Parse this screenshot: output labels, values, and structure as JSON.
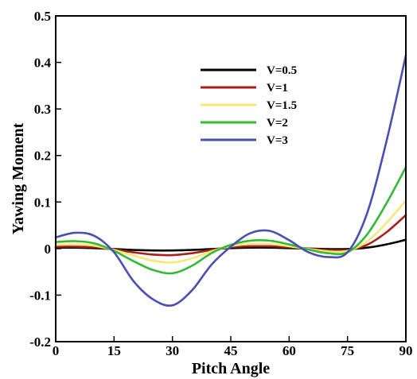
{
  "chart_data": {
    "type": "line",
    "xlabel": "Pitch Angle",
    "ylabel": "Yawing Moment",
    "xlim": [
      0,
      90
    ],
    "ylim": [
      -0.2,
      0.5
    ],
    "x_ticks": [
      0,
      15,
      30,
      45,
      60,
      75,
      90
    ],
    "y_ticks": [
      -0.2,
      -0.1,
      0,
      0.1,
      0.2,
      0.3,
      0.4,
      0.5
    ],
    "x_tick_labels": [
      "0",
      "15",
      "30",
      "45",
      "60",
      "75",
      "90"
    ],
    "y_tick_labels": [
      "-0.2",
      "-0.1",
      "0",
      "0.1",
      "0.2",
      "0.3",
      "0.4",
      "0.5"
    ],
    "grid": false,
    "legend_position": "top-center",
    "x": [
      0,
      5,
      10,
      15,
      20,
      25,
      30,
      35,
      40,
      45,
      50,
      55,
      60,
      65,
      70,
      75,
      80,
      85,
      90
    ],
    "series": [
      {
        "name": "V=0.5",
        "color": "#000000",
        "values": [
          0.002,
          0.002,
          0.001,
          -0.001,
          -0.003,
          -0.004,
          -0.004,
          -0.003,
          -0.001,
          0.001,
          0.002,
          0.002,
          0.001,
          0.0,
          -0.001,
          -0.001,
          0.002,
          0.009,
          0.019
        ]
      },
      {
        "name": "V=1",
        "color": "#a8201a",
        "values": [
          0.004,
          0.004,
          0.003,
          -0.002,
          -0.008,
          -0.013,
          -0.014,
          -0.01,
          -0.003,
          0.003,
          0.005,
          0.005,
          0.003,
          0.0,
          -0.003,
          -0.003,
          0.008,
          0.035,
          0.072
        ]
      },
      {
        "name": "V=1.5",
        "color": "#f5e878",
        "values": [
          0.008,
          0.009,
          0.006,
          -0.003,
          -0.015,
          -0.026,
          -0.03,
          -0.021,
          -0.006,
          0.005,
          0.01,
          0.01,
          0.005,
          -0.001,
          -0.006,
          -0.005,
          0.015,
          0.055,
          0.103
        ]
      },
      {
        "name": "V=2",
        "color": "#33bb33",
        "values": [
          0.014,
          0.016,
          0.011,
          -0.005,
          -0.027,
          -0.046,
          -0.053,
          -0.037,
          -0.01,
          0.008,
          0.017,
          0.017,
          0.009,
          -0.002,
          -0.01,
          -0.008,
          0.03,
          0.097,
          0.175
        ]
      },
      {
        "name": "V=3",
        "color": "#4a4fb2",
        "values": [
          0.024,
          0.034,
          0.027,
          -0.008,
          -0.07,
          -0.109,
          -0.122,
          -0.09,
          -0.035,
          0.004,
          0.033,
          0.038,
          0.018,
          -0.008,
          -0.018,
          -0.008,
          0.075,
          0.23,
          0.415
        ]
      }
    ]
  }
}
